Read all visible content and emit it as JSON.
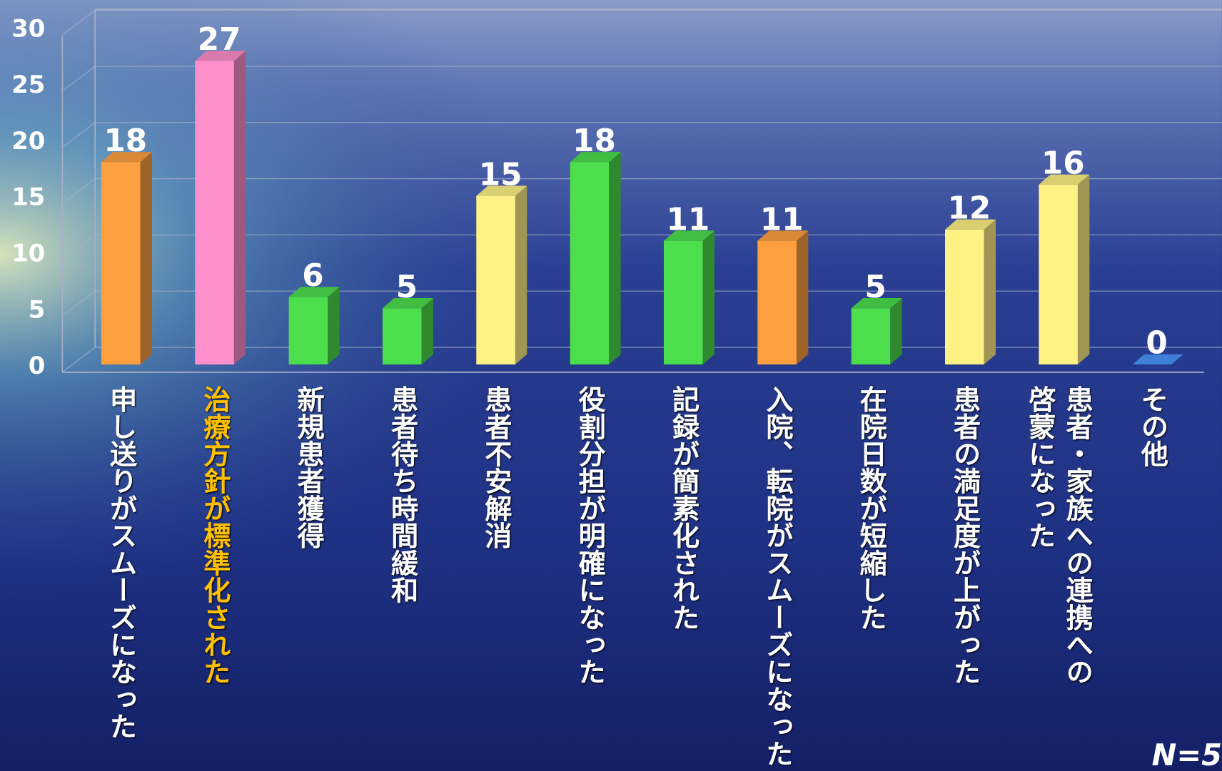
{
  "chart_data": {
    "type": "bar3d",
    "categories": [
      "申し送りがスムーズになった",
      "治療方針が標準化された",
      "新規患者獲得",
      "患者待ち時間緩和",
      "患者不安解消",
      "役割分担が明確になった",
      "記録が簡素化された",
      "入院、転院がスムーズになった",
      "在院日数が短縮した",
      "患者の満足度が上がった",
      "患者・家族への連携への\n啓蒙になった",
      "その他"
    ],
    "values": [
      18,
      27,
      6,
      5,
      15,
      18,
      11,
      11,
      5,
      12,
      16,
      0
    ],
    "colors": [
      "#ffa040",
      "#ff90cc",
      "#4cde4c",
      "#4cde4c",
      "#fff284",
      "#4cde4c",
      "#4cde4c",
      "#ffa040",
      "#4cde4c",
      "#fff284",
      "#fff284",
      "#3f7fd6"
    ],
    "label_colors": [
      "#ffffff",
      "#ffc000",
      "#ffffff",
      "#ffffff",
      "#ffffff",
      "#ffffff",
      "#ffffff",
      "#ffffff",
      "#ffffff",
      "#ffffff",
      "#ffffff",
      "#ffffff"
    ],
    "ylim": [
      0,
      30
    ],
    "yticks": [
      0,
      5,
      10,
      15,
      20,
      25,
      30
    ],
    "grid": true,
    "annotation": "N=5"
  }
}
